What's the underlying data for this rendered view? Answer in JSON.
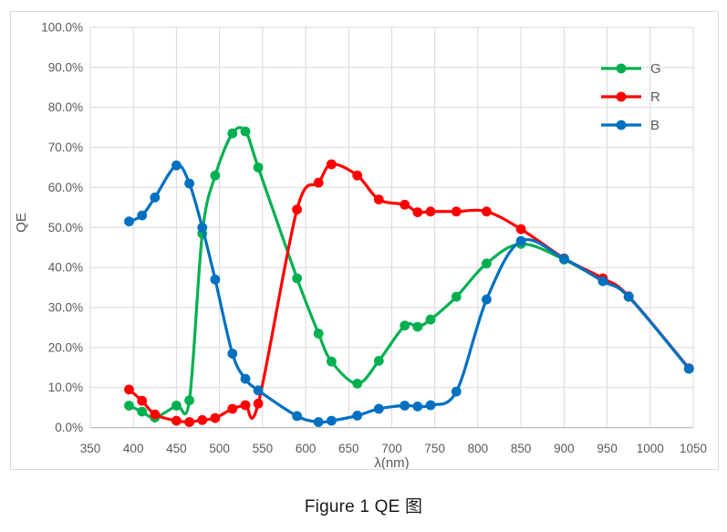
{
  "figure_caption": "Figure 1 QE 图",
  "colors": {
    "grid": "#d9d9d9",
    "axis_line": "#bfbfbf",
    "tick_text": "#595959",
    "caption_text": "#1a1a1a",
    "series_G": "#00B050",
    "series_R": "#FF0000",
    "series_B": "#0070C0"
  },
  "chart_data": {
    "type": "line",
    "title": "",
    "xlabel": "λ(nm)",
    "ylabel": "QE",
    "xlim": [
      350,
      1050
    ],
    "ylim": [
      0,
      100
    ],
    "grid": true,
    "smooth_lines": true,
    "legend_position": "top-right-inside",
    "xtick_values": [
      350,
      400,
      450,
      500,
      550,
      600,
      650,
      700,
      750,
      800,
      850,
      900,
      950,
      1000,
      1050
    ],
    "xtick_labels": [
      "350",
      "400",
      "450",
      "500",
      "550",
      "600",
      "650",
      "700",
      "750",
      "800",
      "850",
      "900",
      "950",
      "1000",
      "1050"
    ],
    "ytick_values": [
      0,
      10,
      20,
      30,
      40,
      50,
      60,
      70,
      80,
      90,
      100
    ],
    "ytick_labels": [
      "0.0%",
      "10.0%",
      "20.0%",
      "30.0%",
      "40.0%",
      "50.0%",
      "60.0%",
      "70.0%",
      "80.0%",
      "90.0%",
      "100.0%"
    ],
    "x": [
      395,
      410,
      425,
      450,
      465,
      480,
      495,
      515,
      530,
      545,
      590,
      615,
      630,
      660,
      685,
      715,
      730,
      745,
      775,
      810,
      850,
      900,
      945,
      975,
      1045
    ],
    "series": [
      {
        "name": "G",
        "color": "#00B050",
        "values": [
          5.5,
          4.0,
          2.5,
          5.5,
          6.8,
          48.5,
          63.0,
          73.5,
          74.0,
          65.0,
          37.3,
          23.5,
          16.5,
          11.0,
          16.7,
          25.5,
          25.2,
          27.0,
          32.7,
          41.0,
          45.9,
          42.0,
          36.6,
          32.7,
          14.7
        ]
      },
      {
        "name": "R",
        "color": "#FF0000",
        "values": [
          9.5,
          6.7,
          3.3,
          1.7,
          1.4,
          1.9,
          2.4,
          4.7,
          5.6,
          6.0,
          54.5,
          61.2,
          65.8,
          63.0,
          57.0,
          55.7,
          53.8,
          54.0,
          54.0,
          54.0,
          49.6,
          42.3,
          37.3,
          32.8,
          14.8
        ]
      },
      {
        "name": "B",
        "color": "#0070C0",
        "values": [
          51.5,
          53.0,
          57.5,
          65.5,
          61.0,
          50.0,
          37.0,
          18.5,
          12.2,
          9.3,
          2.9,
          1.4,
          1.7,
          3.0,
          4.7,
          5.5,
          5.3,
          5.6,
          9.0,
          32.0,
          46.6,
          42.2,
          36.6,
          32.7,
          14.7
        ]
      }
    ],
    "legend": [
      "G",
      "R",
      "B"
    ]
  }
}
